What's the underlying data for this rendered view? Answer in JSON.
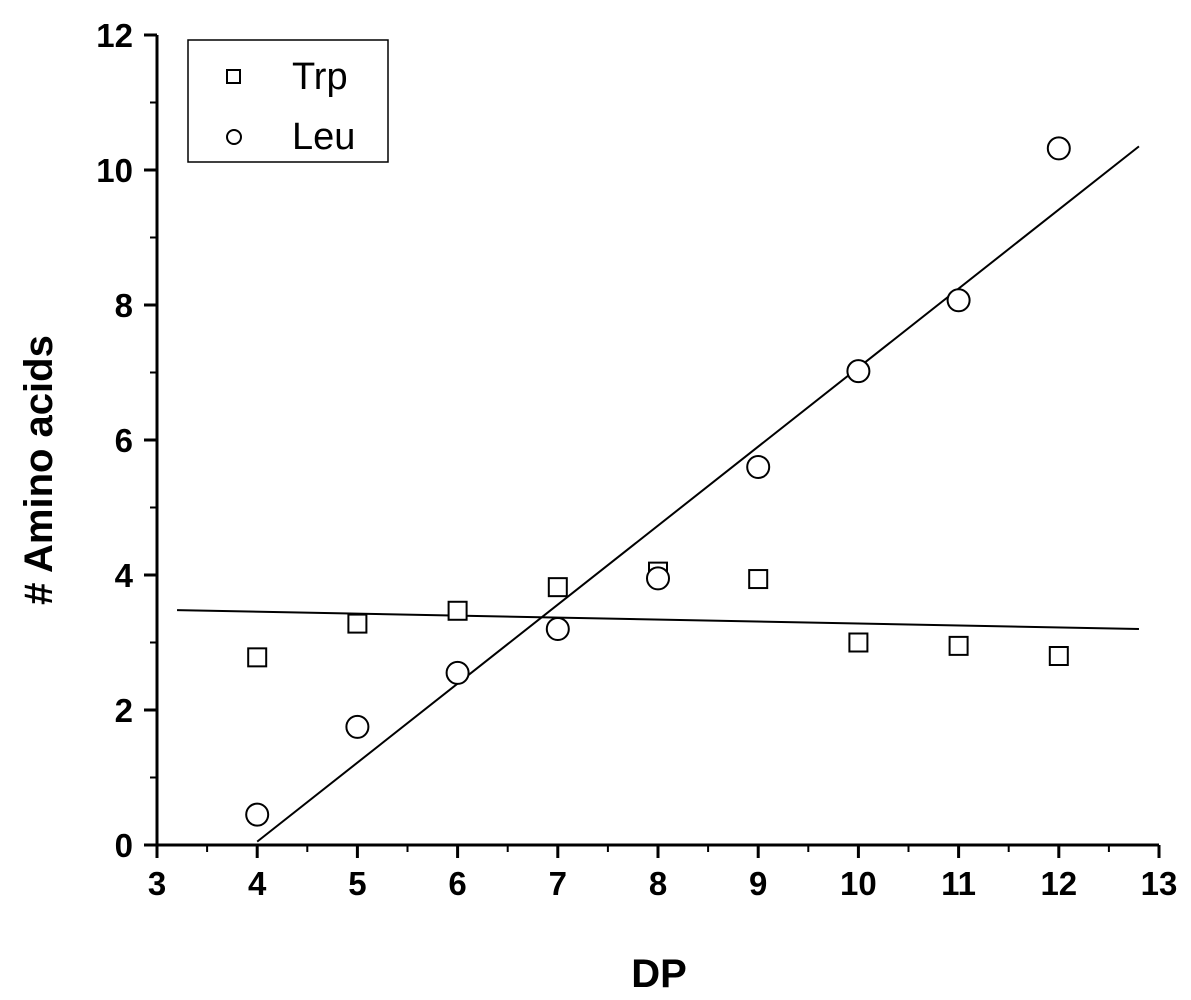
{
  "chart_data": {
    "type": "scatter",
    "xlabel": "DP",
    "ylabel": "# Amino acids",
    "xlim": [
      3,
      13
    ],
    "ylim": [
      0,
      12
    ],
    "x_ticks": [
      "3",
      "4",
      "5",
      "6",
      "7",
      "8",
      "9",
      "10",
      "11",
      "12",
      "13"
    ],
    "y_ticks": [
      "0",
      "2",
      "4",
      "6",
      "8",
      "10",
      "12"
    ],
    "legend_position": "top-left",
    "grid": false,
    "series": [
      {
        "name": "Trp",
        "marker": "square",
        "x": [
          4,
          5,
          6,
          7,
          8,
          9,
          10,
          11,
          12
        ],
        "y": [
          2.78,
          3.28,
          3.47,
          3.82,
          4.05,
          3.94,
          3.0,
          2.95,
          2.8
        ],
        "fit_line": {
          "x": [
            3.2,
            12.8
          ],
          "y": [
            3.48,
            3.2
          ]
        }
      },
      {
        "name": "Leu",
        "marker": "circle",
        "x": [
          4,
          5,
          6,
          7,
          8,
          9,
          10,
          11,
          12
        ],
        "y": [
          0.45,
          1.75,
          2.55,
          3.2,
          3.95,
          5.6,
          7.02,
          8.07,
          10.32
        ],
        "fit_line": {
          "x": [
            4.0,
            12.8
          ],
          "y": [
            0.05,
            10.35
          ]
        }
      }
    ]
  }
}
